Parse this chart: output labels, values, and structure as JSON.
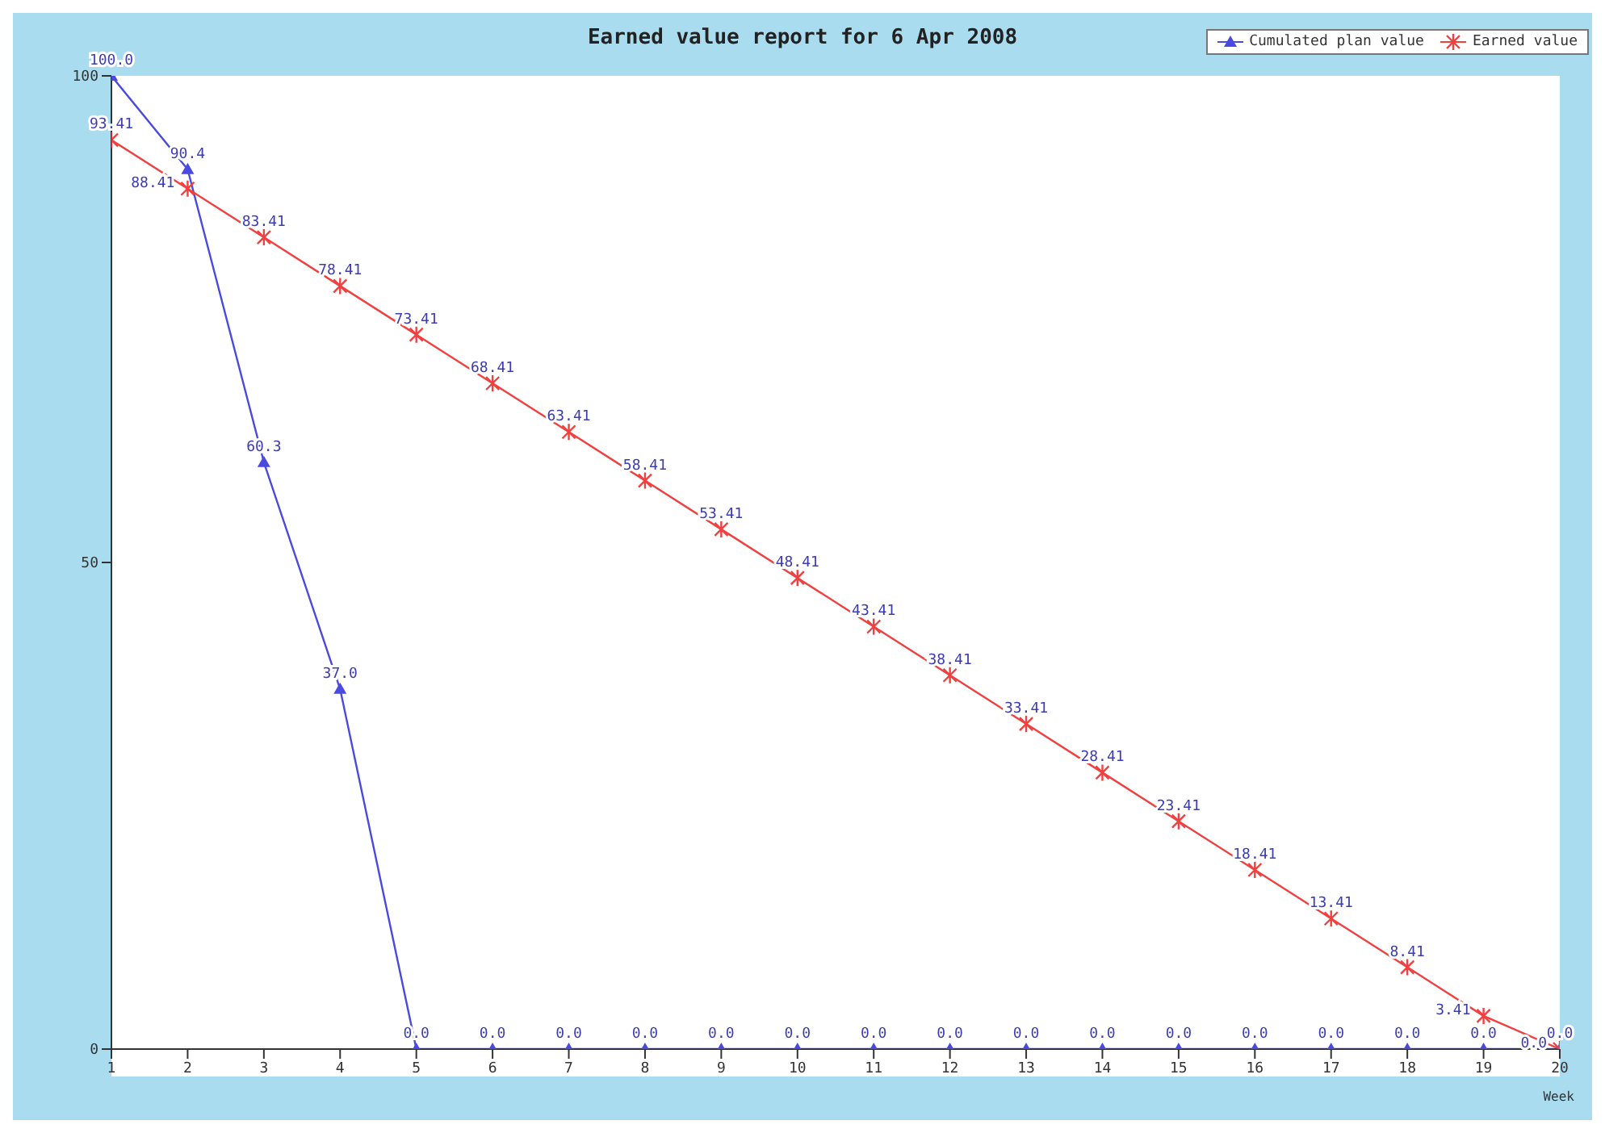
{
  "chart_data": {
    "type": "line",
    "title": "Earned value report for 6 Apr 2008",
    "xlabel": "Week",
    "x": [
      1,
      2,
      3,
      4,
      5,
      6,
      7,
      8,
      9,
      10,
      11,
      12,
      13,
      14,
      15,
      16,
      17,
      18,
      19,
      20
    ],
    "series": [
      {
        "name": "Cumulated plan value",
        "color": "#4a4ae0",
        "marker": "triangle",
        "values": [
          100.0,
          90.4,
          60.3,
          37.0,
          0,
          0,
          0,
          0,
          0,
          0,
          0,
          0,
          0,
          0,
          0,
          0,
          0,
          0,
          0,
          0
        ],
        "value_labels": [
          "100.0",
          "90.4",
          "60.3",
          "37.0",
          "0.0",
          "0.0",
          "0.0",
          "0.0",
          "0.0",
          "0.0",
          "0.0",
          "0.0",
          "0.0",
          "0.0",
          "0.0",
          "0.0",
          "0.0",
          "0.0",
          "0.0",
          "0.0"
        ]
      },
      {
        "name": "Earned value",
        "color": "#f04040",
        "marker": "cross",
        "values": [
          93.41,
          88.41,
          83.41,
          78.41,
          73.41,
          68.41,
          63.41,
          58.41,
          53.41,
          48.41,
          43.41,
          38.41,
          33.41,
          28.41,
          23.41,
          18.41,
          13.41,
          8.41,
          3.41,
          0
        ],
        "value_labels": [
          "93.41",
          "88.41",
          "83.41",
          "78.41",
          "73.41",
          "68.41",
          "63.41",
          "58.41",
          "53.41",
          "48.41",
          "43.41",
          "38.41",
          "33.41",
          "28.41",
          "23.41",
          "18.41",
          "13.41",
          "8.41",
          "3.41",
          "0.0"
        ]
      }
    ],
    "xlim": [
      1,
      20
    ],
    "xticks": [
      1,
      2,
      3,
      4,
      5,
      6,
      7,
      8,
      9,
      10,
      11,
      12,
      13,
      14,
      15,
      16,
      17,
      18,
      19,
      20
    ],
    "ylim": [
      0,
      100
    ],
    "yticks": [
      0,
      50,
      100
    ],
    "grid": false,
    "legend": "top right"
  }
}
